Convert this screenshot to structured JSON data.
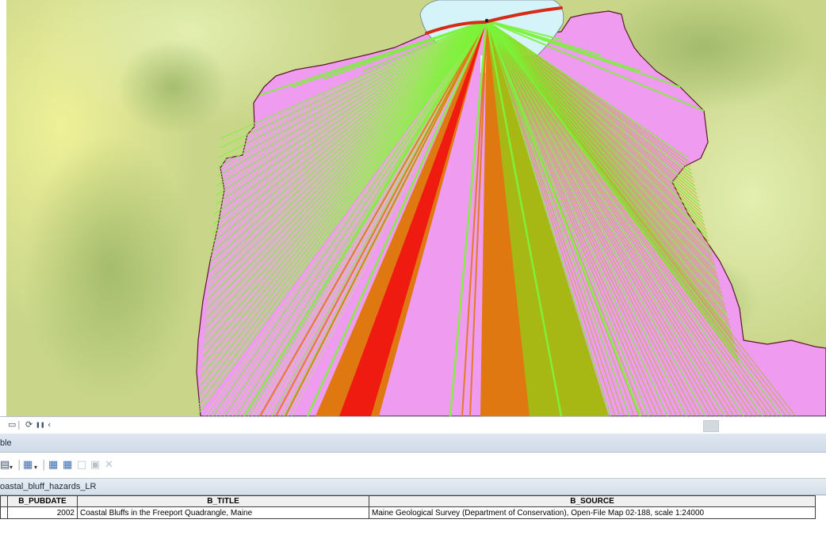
{
  "map": {
    "colors": {
      "terrain": "#c9d68a",
      "land": "#ee9bf0",
      "water": "#d5f4f9",
      "hazard_low": "#7cf23a",
      "hazard_moderate": "#a7b815",
      "hazard_elevated": "#e07812",
      "hazard_high": "#ef1b10",
      "shoreline": "#d42c16"
    }
  },
  "map_toolbar": {
    "icons": [
      "layout-view-icon",
      "refresh-icon",
      "pause-icon",
      "back-icon"
    ],
    "glyphs": [
      "▭",
      "⟳",
      "❚❚",
      "‹"
    ]
  },
  "table_window": {
    "title": "ble",
    "toolbar_icons": [
      "table-options-icon",
      "related-tables-icon",
      "select-by-attributes-icon",
      "switch-selection-icon",
      "clear-selection-icon",
      "zoom-to-selected-icon",
      "delete-selected-icon"
    ],
    "layer_tab": "oastal_bluff_hazards_LR",
    "columns": [
      "B_PUBDATE",
      "B_TITLE",
      "B_SOURCE"
    ],
    "rows": [
      {
        "B_PUBDATE": "2002",
        "B_TITLE": "Coastal Bluffs in the Freeport Quadrangle, Maine",
        "B_SOURCE": "Maine Geological Survey (Department of Conservation), Open-File Map 02-188, scale 1:24000"
      }
    ]
  }
}
